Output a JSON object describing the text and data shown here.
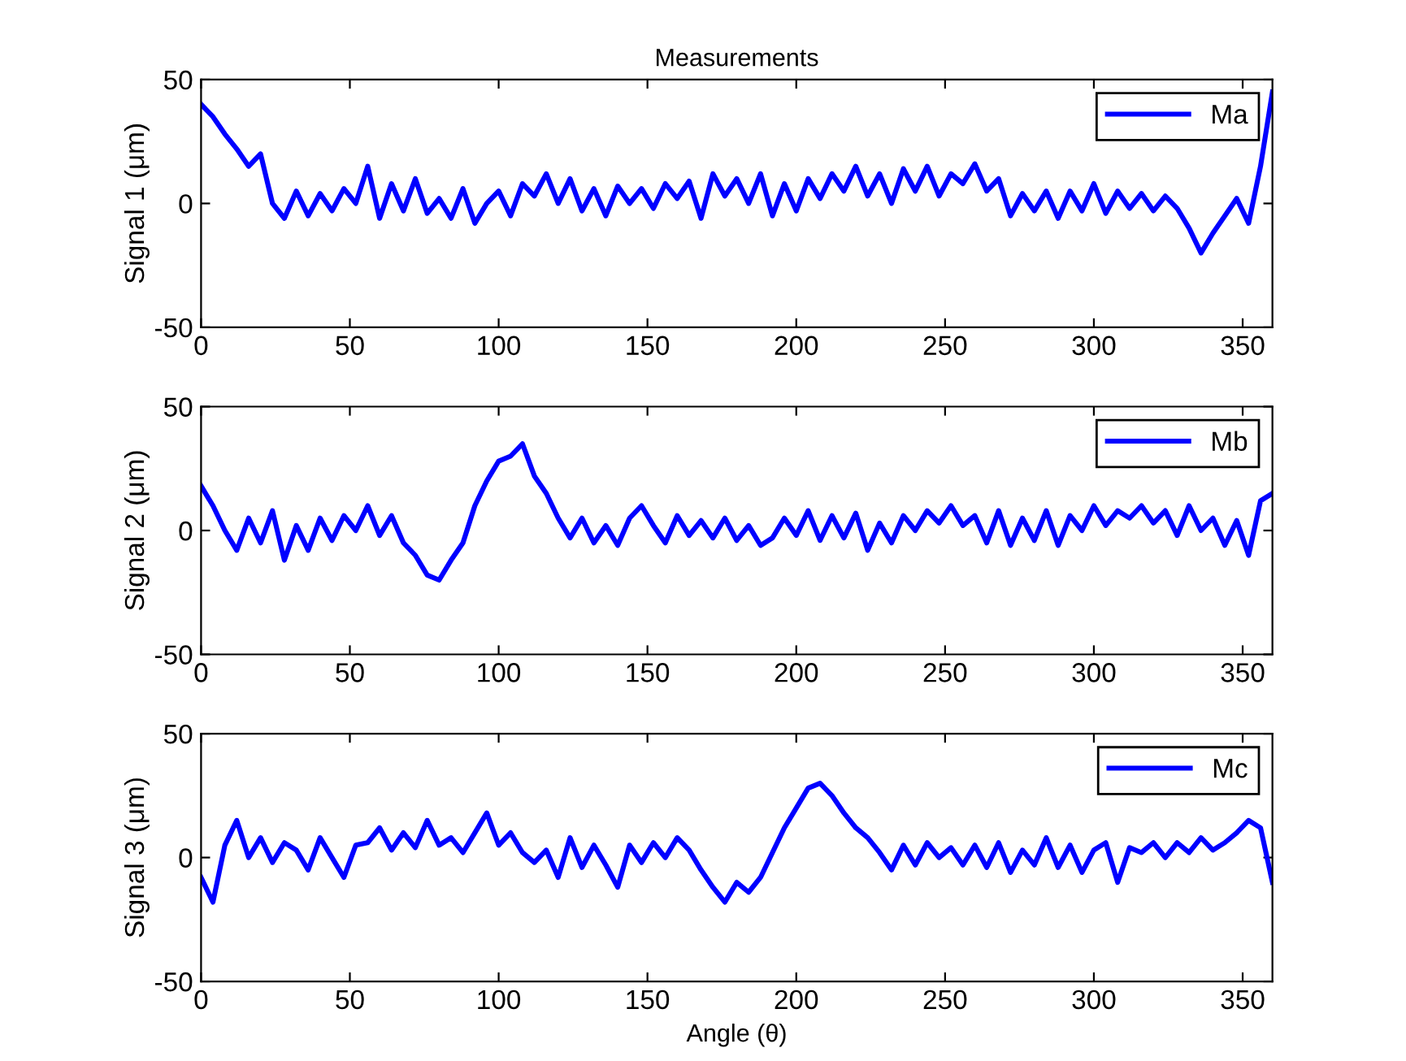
{
  "chart_data": [
    {
      "type": "line",
      "title": "Measurements",
      "ylabel": "Signal 1 (μm)",
      "xlim": [
        0,
        360
      ],
      "ylim": [
        -50,
        50
      ],
      "xticks": [
        0,
        50,
        100,
        150,
        200,
        250,
        300,
        350
      ],
      "yticks": [
        -50,
        0,
        50
      ],
      "legend": "top right",
      "grid": false,
      "x": [
        0,
        4,
        8,
        12,
        16,
        20,
        24,
        28,
        32,
        36,
        40,
        44,
        48,
        52,
        56,
        60,
        64,
        68,
        72,
        76,
        80,
        84,
        88,
        92,
        96,
        100,
        104,
        108,
        112,
        116,
        120,
        124,
        128,
        132,
        136,
        140,
        144,
        148,
        152,
        156,
        160,
        164,
        168,
        172,
        176,
        180,
        184,
        188,
        192,
        196,
        200,
        204,
        208,
        212,
        216,
        220,
        224,
        228,
        232,
        236,
        240,
        244,
        248,
        252,
        256,
        260,
        264,
        268,
        272,
        276,
        280,
        284,
        288,
        292,
        296,
        300,
        304,
        308,
        312,
        316,
        320,
        324,
        328,
        332,
        336,
        340,
        344,
        348,
        352,
        356,
        360
      ],
      "series": [
        {
          "name": "Ma",
          "color": "#0000ff",
          "values": [
            40,
            35,
            28,
            22,
            15,
            20,
            0,
            -6,
            5,
            -5,
            4,
            -3,
            6,
            0,
            15,
            -6,
            8,
            -3,
            10,
            -4,
            2,
            -6,
            6,
            -8,
            0,
            5,
            -5,
            8,
            3,
            12,
            0,
            10,
            -3,
            6,
            -5,
            7,
            0,
            6,
            -2,
            8,
            2,
            9,
            -6,
            12,
            3,
            10,
            0,
            12,
            -5,
            8,
            -3,
            10,
            2,
            12,
            5,
            15,
            3,
            12,
            0,
            14,
            5,
            15,
            3,
            12,
            8,
            16,
            5,
            10,
            -5,
            4,
            -3,
            5,
            -6,
            5,
            -3,
            8,
            -4,
            5,
            -2,
            4,
            -3,
            3,
            -2,
            -10,
            -20,
            -12,
            -5,
            2,
            -8,
            15,
            45
          ]
        }
      ]
    },
    {
      "type": "line",
      "ylabel": "Signal 2 (μm)",
      "xlim": [
        0,
        360
      ],
      "ylim": [
        -50,
        50
      ],
      "xticks": [
        0,
        50,
        100,
        150,
        200,
        250,
        300,
        350
      ],
      "yticks": [
        -50,
        0,
        50
      ],
      "legend": "top right",
      "grid": false,
      "x": [
        0,
        4,
        8,
        12,
        16,
        20,
        24,
        28,
        32,
        36,
        40,
        44,
        48,
        52,
        56,
        60,
        64,
        68,
        72,
        76,
        80,
        84,
        88,
        92,
        96,
        100,
        104,
        108,
        112,
        116,
        120,
        124,
        128,
        132,
        136,
        140,
        144,
        148,
        152,
        156,
        160,
        164,
        168,
        172,
        176,
        180,
        184,
        188,
        192,
        196,
        200,
        204,
        208,
        212,
        216,
        220,
        224,
        228,
        232,
        236,
        240,
        244,
        248,
        252,
        256,
        260,
        264,
        268,
        272,
        276,
        280,
        284,
        288,
        292,
        296,
        300,
        304,
        308,
        312,
        316,
        320,
        324,
        328,
        332,
        336,
        340,
        344,
        348,
        352,
        356,
        360
      ],
      "series": [
        {
          "name": "Mb",
          "color": "#0000ff",
          "values": [
            18,
            10,
            0,
            -8,
            5,
            -5,
            8,
            -12,
            2,
            -8,
            5,
            -4,
            6,
            0,
            10,
            -2,
            6,
            -5,
            -10,
            -18,
            -20,
            -12,
            -5,
            10,
            20,
            28,
            30,
            35,
            22,
            15,
            5,
            -3,
            5,
            -5,
            2,
            -6,
            5,
            10,
            2,
            -5,
            6,
            -2,
            4,
            -3,
            5,
            -4,
            2,
            -6,
            -3,
            5,
            -2,
            8,
            -4,
            6,
            -3,
            7,
            -8,
            3,
            -5,
            6,
            0,
            8,
            3,
            10,
            2,
            6,
            -5,
            8,
            -6,
            5,
            -4,
            8,
            -6,
            6,
            0,
            10,
            2,
            8,
            5,
            10,
            3,
            8,
            -2,
            10,
            0,
            5,
            -6,
            4,
            -10,
            12,
            15
          ]
        }
      ]
    },
    {
      "type": "line",
      "xlabel": "Angle (θ)",
      "ylabel": "Signal 3 (μm)",
      "xlim": [
        0,
        360
      ],
      "ylim": [
        -50,
        50
      ],
      "xticks": [
        0,
        50,
        100,
        150,
        200,
        250,
        300,
        350
      ],
      "yticks": [
        -50,
        0,
        50
      ],
      "legend": "top right",
      "grid": false,
      "x": [
        0,
        4,
        8,
        12,
        16,
        20,
        24,
        28,
        32,
        36,
        40,
        44,
        48,
        52,
        56,
        60,
        64,
        68,
        72,
        76,
        80,
        84,
        88,
        92,
        96,
        100,
        104,
        108,
        112,
        116,
        120,
        124,
        128,
        132,
        136,
        140,
        144,
        148,
        152,
        156,
        160,
        164,
        168,
        172,
        176,
        180,
        184,
        188,
        192,
        196,
        200,
        204,
        208,
        212,
        216,
        220,
        224,
        228,
        232,
        236,
        240,
        244,
        248,
        252,
        256,
        260,
        264,
        268,
        272,
        276,
        280,
        284,
        288,
        292,
        296,
        300,
        304,
        308,
        312,
        316,
        320,
        324,
        328,
        332,
        336,
        340,
        344,
        348,
        352,
        356,
        360
      ],
      "series": [
        {
          "name": "Mc",
          "color": "#0000ff",
          "values": [
            -8,
            -18,
            5,
            15,
            0,
            8,
            -2,
            6,
            3,
            -5,
            8,
            0,
            -8,
            5,
            6,
            12,
            3,
            10,
            4,
            15,
            5,
            8,
            2,
            10,
            18,
            5,
            10,
            2,
            -2,
            3,
            -8,
            8,
            -4,
            5,
            -3,
            -12,
            5,
            -2,
            6,
            0,
            8,
            3,
            -5,
            -12,
            -18,
            -10,
            -14,
            -8,
            2,
            12,
            20,
            28,
            30,
            25,
            18,
            12,
            8,
            2,
            -5,
            5,
            -3,
            6,
            0,
            4,
            -3,
            5,
            -4,
            6,
            -6,
            3,
            -3,
            8,
            -4,
            5,
            -6,
            3,
            6,
            -10,
            4,
            2,
            6,
            0,
            6,
            2,
            8,
            3,
            6,
            10,
            15,
            12,
            -10
          ]
        }
      ]
    }
  ]
}
